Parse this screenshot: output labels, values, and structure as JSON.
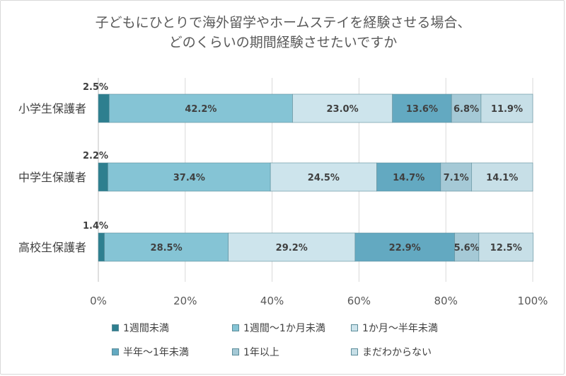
{
  "title": {
    "line1": "子どもにひとりで海外留学やホームステイを経験させる場合、",
    "line2": "どのくらいの期間経験させたいですか"
  },
  "chart_data": {
    "type": "bar",
    "orientation": "horizontal",
    "stacked": "percent",
    "categories": [
      "小学生保護者",
      "中学生保護者",
      "高校生保護者"
    ],
    "series": [
      {
        "name": "1週間未満",
        "color": "#2e7f8f",
        "values": [
          2.5,
          2.2,
          1.4
        ],
        "labels": [
          "2.5%",
          "2.2%",
          "1.4%"
        ]
      },
      {
        "name": "1週間～1か月未満",
        "color": "#85c4d5",
        "values": [
          42.2,
          37.4,
          28.5
        ],
        "labels": [
          "42.2%",
          "37.4%",
          "28.5%"
        ]
      },
      {
        "name": "1か月～半年未満",
        "color": "#cde4ec",
        "values": [
          23.0,
          24.5,
          29.2
        ],
        "labels": [
          "23.0%",
          "24.5%",
          "29.2%"
        ]
      },
      {
        "name": "半年～1年未満",
        "color": "#63a9c1",
        "values": [
          13.6,
          14.7,
          22.9
        ],
        "labels": [
          "13.6%",
          "14.7%",
          "22.9%"
        ]
      },
      {
        "name": "1年以上",
        "color": "#a5c9d6",
        "values": [
          6.8,
          7.1,
          5.6
        ],
        "labels": [
          "6.8%",
          "7.1%",
          "5.6%"
        ]
      },
      {
        "name": "まだわからない",
        "color": "#c7dfe7",
        "values": [
          11.9,
          14.1,
          12.5
        ],
        "labels": [
          "11.9%",
          "14.1%",
          "12.5%"
        ]
      }
    ],
    "x_ticks": [
      "0%",
      "20%",
      "40%",
      "60%",
      "80%",
      "100%"
    ],
    "xlim": [
      0,
      100
    ],
    "grid": true,
    "legend_position": "bottom"
  }
}
